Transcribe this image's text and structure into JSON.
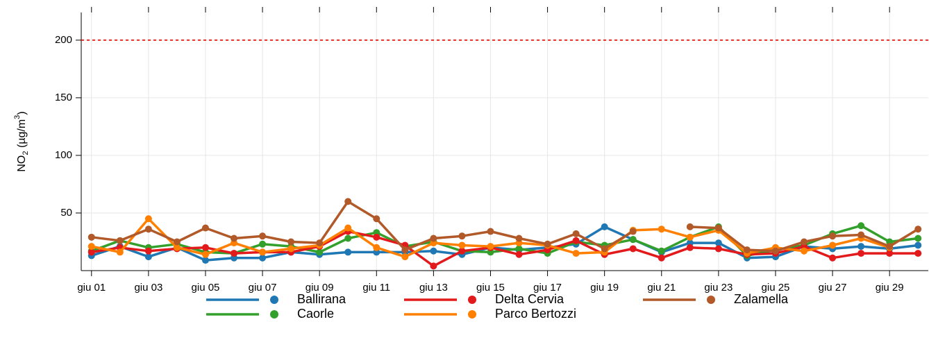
{
  "chart_data": {
    "type": "line",
    "ylabel_parts": [
      "NO",
      "2",
      " (µg/m",
      "3",
      ")"
    ],
    "categories": [
      "giu 01",
      null,
      "giu 03",
      null,
      "giu 05",
      null,
      "giu 07",
      null,
      "giu 09",
      null,
      "giu 11",
      null,
      "giu 13",
      null,
      "giu 15",
      null,
      "giu 17",
      null,
      "giu 19",
      null,
      "giu 21",
      null,
      "giu 23",
      null,
      "giu 25",
      null,
      "giu 27",
      null,
      "giu 29",
      null
    ],
    "ylim": [
      0,
      224
    ],
    "yticks": [
      50,
      100,
      150,
      200
    ],
    "grid": true,
    "reference_line": {
      "value": 200,
      "color": "#ee0000"
    },
    "legend": "bottom",
    "series": [
      {
        "name": "Ballirana",
        "color": "#1f78b4",
        "values": [
          13,
          21,
          12,
          20,
          9,
          11,
          11,
          16,
          14,
          16,
          16,
          16,
          17,
          14,
          20,
          18,
          20,
          23,
          38,
          27,
          16,
          24,
          24,
          11,
          12,
          21,
          19,
          21,
          19,
          22
        ]
      },
      {
        "name": "Caorle",
        "color": "#33a02c",
        "values": [
          17,
          26,
          20,
          23,
          16,
          15,
          23,
          21,
          16,
          28,
          33,
          21,
          25,
          17,
          16,
          19,
          15,
          25,
          22,
          27,
          17,
          29,
          38,
          13,
          18,
          22,
          32,
          39,
          25,
          28
        ]
      },
      {
        "name": "Delta Cervia",
        "color": "#e31a1c",
        "values": [
          16,
          20,
          17,
          19,
          20,
          15,
          16,
          16,
          21,
          34,
          29,
          22,
          4,
          17,
          20,
          14,
          18,
          26,
          14,
          19,
          11,
          20,
          19,
          14,
          15,
          21,
          11,
          15,
          15,
          15
        ]
      },
      {
        "name": "Parco Bertozzi",
        "color": "#ff7f00",
        "values": [
          21,
          16,
          45,
          20,
          14,
          24,
          16,
          19,
          22,
          37,
          20,
          12,
          24,
          22,
          21,
          24,
          22,
          15,
          16,
          35,
          36,
          29,
          35,
          15,
          20,
          17,
          22,
          28,
          20,
          null
        ]
      },
      {
        "name": "Zalamella",
        "color": "#b15928",
        "values": [
          29,
          26,
          36,
          25,
          37,
          28,
          30,
          25,
          24,
          60,
          45,
          18,
          28,
          30,
          34,
          28,
          23,
          32,
          19,
          34,
          null,
          38,
          37,
          18,
          17,
          25,
          30,
          31,
          21,
          36
        ]
      }
    ]
  }
}
